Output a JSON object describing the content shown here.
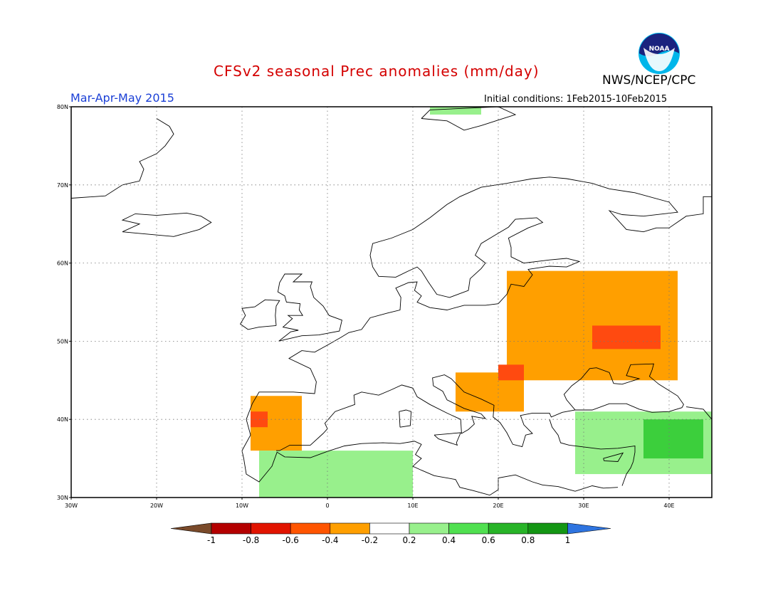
{
  "header": {
    "title": "CFSv2 seasonal Prec anomalies (mm/day)",
    "season": "Mar-Apr-May 2015",
    "initial_conditions": "Initial conditions: 1Feb2015-10Feb2015",
    "agency": "NWS/NCEP/CPC",
    "logo_text": "NOAA"
  },
  "map": {
    "region": "Europe",
    "lon_range": [
      -30,
      45
    ],
    "lat_range": [
      30,
      80
    ],
    "lat_labels": [
      "80N",
      "70N",
      "60N",
      "50N",
      "40N",
      "30N"
    ],
    "lon_labels": [
      "30W",
      "20W",
      "10W",
      "0",
      "10E",
      "20E",
      "30E",
      "40E"
    ],
    "gridlines": true,
    "anomaly_regions": [
      {
        "area": "Iberia",
        "category": "-0.4 to -0.2",
        "lon": [
          -9,
          -3
        ],
        "lat": [
          36,
          43
        ]
      },
      {
        "area": "Portugal core",
        "category": "-0.6 to -0.4",
        "lon": [
          -9,
          -7
        ],
        "lat": [
          39,
          41
        ]
      },
      {
        "area": "Western Russia / Belarus / Ukraine",
        "category": "-0.4 to -0.2",
        "lon": [
          21,
          41
        ],
        "lat": [
          45,
          59
        ]
      },
      {
        "area": "Ukraine-Russia core",
        "category": "-0.6 to -0.4",
        "lon": [
          31,
          39
        ],
        "lat": [
          49,
          52
        ]
      },
      {
        "area": "Balkans",
        "category": "-0.4 to -0.2",
        "lon": [
          15,
          23
        ],
        "lat": [
          41,
          46
        ]
      },
      {
        "area": "Hungary-Romania core",
        "category": "-0.6 to -0.4",
        "lon": [
          20,
          23
        ],
        "lat": [
          45,
          47
        ]
      },
      {
        "area": "North Africa",
        "category": "0.2 to 0.4",
        "lon": [
          -8,
          10
        ],
        "lat": [
          30,
          36
        ]
      },
      {
        "area": "Turkey / Middle East",
        "category": "0.2 to 0.4",
        "lon": [
          29,
          45
        ],
        "lat": [
          33,
          41
        ]
      },
      {
        "area": "Eastern Turkey core",
        "category": "0.4 to 0.6",
        "lon": [
          37,
          44
        ],
        "lat": [
          35,
          40
        ]
      },
      {
        "area": "Svalbard",
        "category": "0.2 to 0.4",
        "lon": [
          12,
          18
        ],
        "lat": [
          79,
          80
        ]
      }
    ]
  },
  "colorbar": {
    "labels": [
      "-1",
      "-0.8",
      "-0.6",
      "-0.4",
      "-0.2",
      "0.2",
      "0.4",
      "0.6",
      "0.8",
      "1"
    ],
    "colors": [
      "#7a4a2a",
      "#b40000",
      "#e11400",
      "#ff5500",
      "#ff9f00",
      "#ffffff",
      "#98f08c",
      "#50e050",
      "#28b428",
      "#149614",
      "#2e74e0"
    ]
  }
}
